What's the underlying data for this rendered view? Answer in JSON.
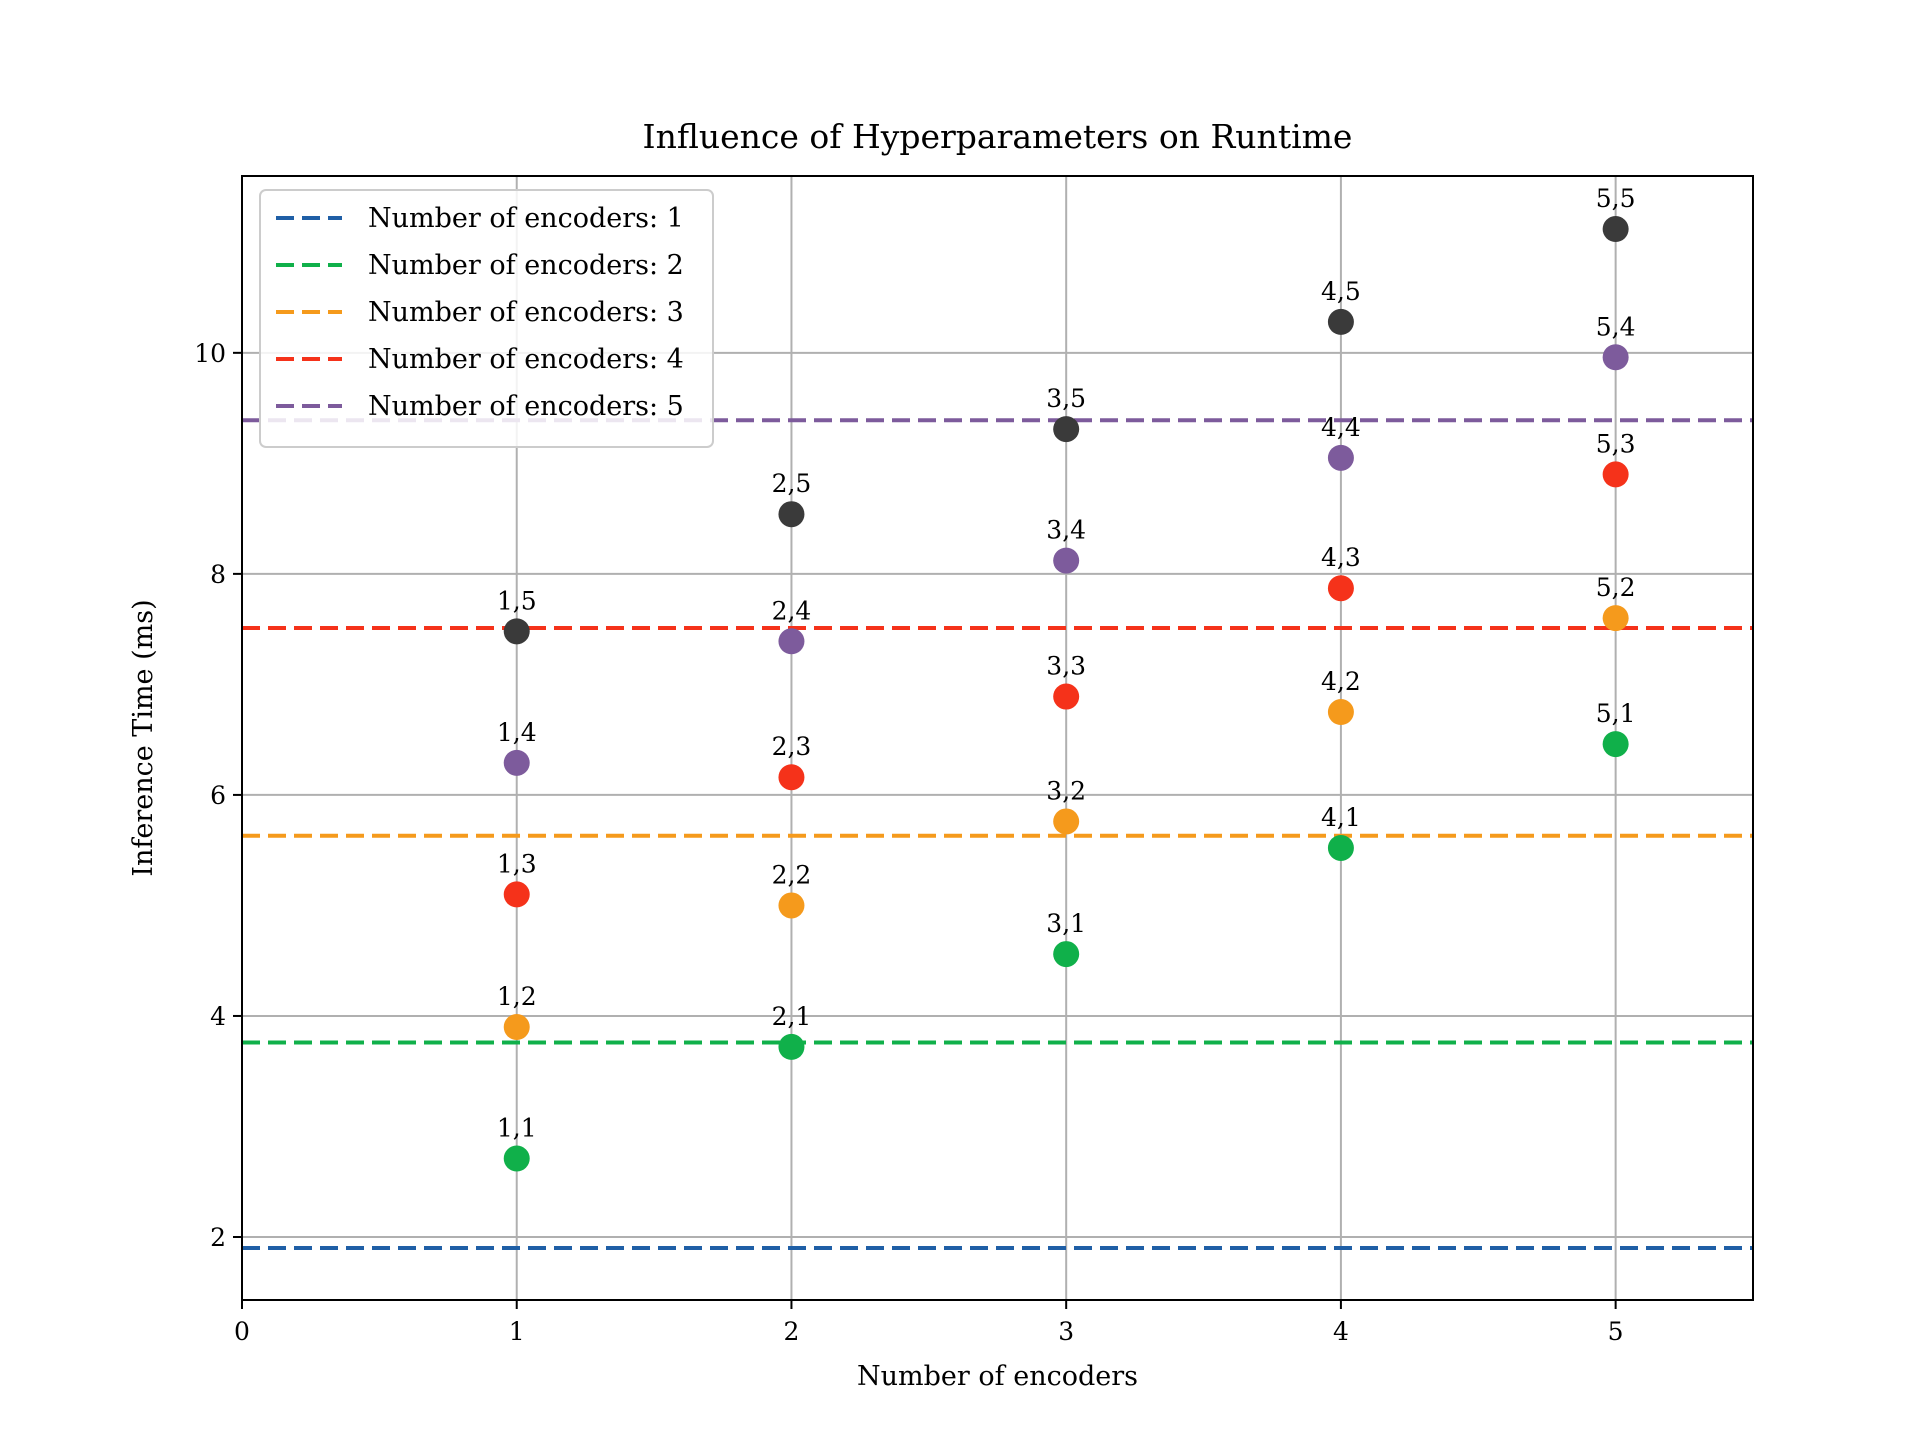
{
  "chart_data": {
    "type": "scatter",
    "title": "Influence of Hyperparameters on Runtime",
    "xlabel": "Number of encoders",
    "ylabel": "Inference Time (ms)",
    "xlim": [
      0,
      5.5
    ],
    "ylim": [
      1.43,
      11.6
    ],
    "xticks": [
      0,
      1,
      2,
      3,
      4,
      5
    ],
    "yticks": [
      2,
      4,
      6,
      8,
      10
    ],
    "grid": true,
    "legend_position": "top-left",
    "reference_lines": [
      {
        "name": "Number of encoders: 1",
        "y": 1.9,
        "color": "#1f5fa6",
        "style": "dashed"
      },
      {
        "name": "Number of encoders: 2",
        "y": 3.76,
        "color": "#10b04a",
        "style": "dashed"
      },
      {
        "name": "Number of encoders: 3",
        "y": 5.63,
        "color": "#f59a1c",
        "style": "dashed"
      },
      {
        "name": "Number of encoders: 4",
        "y": 7.51,
        "color": "#f5321a",
        "style": "dashed"
      },
      {
        "name": "Number of encoders: 5",
        "y": 9.39,
        "color": "#7d5b9c",
        "style": "dashed"
      }
    ],
    "point_colors": {
      "1": "#10b04a",
      "2": "#f59a1c",
      "3": "#f5321a",
      "4": "#7d5b9c",
      "5": "#3a3a3a"
    },
    "points": [
      {
        "x": 1,
        "y": 2.71,
        "group": 1,
        "label": "1,1"
      },
      {
        "x": 1,
        "y": 3.9,
        "group": 2,
        "label": "1,2"
      },
      {
        "x": 1,
        "y": 5.1,
        "group": 3,
        "label": "1,3"
      },
      {
        "x": 1,
        "y": 6.29,
        "group": 4,
        "label": "1,4"
      },
      {
        "x": 1,
        "y": 7.48,
        "group": 5,
        "label": "1,5"
      },
      {
        "x": 2,
        "y": 3.72,
        "group": 1,
        "label": "2,1"
      },
      {
        "x": 2,
        "y": 5.0,
        "group": 2,
        "label": "2,2"
      },
      {
        "x": 2,
        "y": 6.16,
        "group": 3,
        "label": "2,3"
      },
      {
        "x": 2,
        "y": 7.39,
        "group": 4,
        "label": "2,4"
      },
      {
        "x": 2,
        "y": 8.54,
        "group": 5,
        "label": "2,5"
      },
      {
        "x": 3,
        "y": 4.56,
        "group": 1,
        "label": "3,1"
      },
      {
        "x": 3,
        "y": 5.76,
        "group": 2,
        "label": "3,2"
      },
      {
        "x": 3,
        "y": 6.89,
        "group": 3,
        "label": "3,3"
      },
      {
        "x": 3,
        "y": 8.12,
        "group": 4,
        "label": "3,4"
      },
      {
        "x": 3,
        "y": 9.31,
        "group": 5,
        "label": "3,5"
      },
      {
        "x": 4,
        "y": 5.52,
        "group": 1,
        "label": "4,1"
      },
      {
        "x": 4,
        "y": 6.75,
        "group": 2,
        "label": "4,2"
      },
      {
        "x": 4,
        "y": 7.87,
        "group": 3,
        "label": "4,3"
      },
      {
        "x": 4,
        "y": 9.05,
        "group": 4,
        "label": "4,4"
      },
      {
        "x": 4,
        "y": 10.28,
        "group": 5,
        "label": "4,5"
      },
      {
        "x": 5,
        "y": 6.46,
        "group": 1,
        "label": "5,1"
      },
      {
        "x": 5,
        "y": 7.6,
        "group": 2,
        "label": "5,2"
      },
      {
        "x": 5,
        "y": 8.9,
        "group": 3,
        "label": "5,3"
      },
      {
        "x": 5,
        "y": 9.96,
        "group": 4,
        "label": "5,4"
      },
      {
        "x": 5,
        "y": 11.12,
        "group": 5,
        "label": "5,5"
      }
    ]
  }
}
